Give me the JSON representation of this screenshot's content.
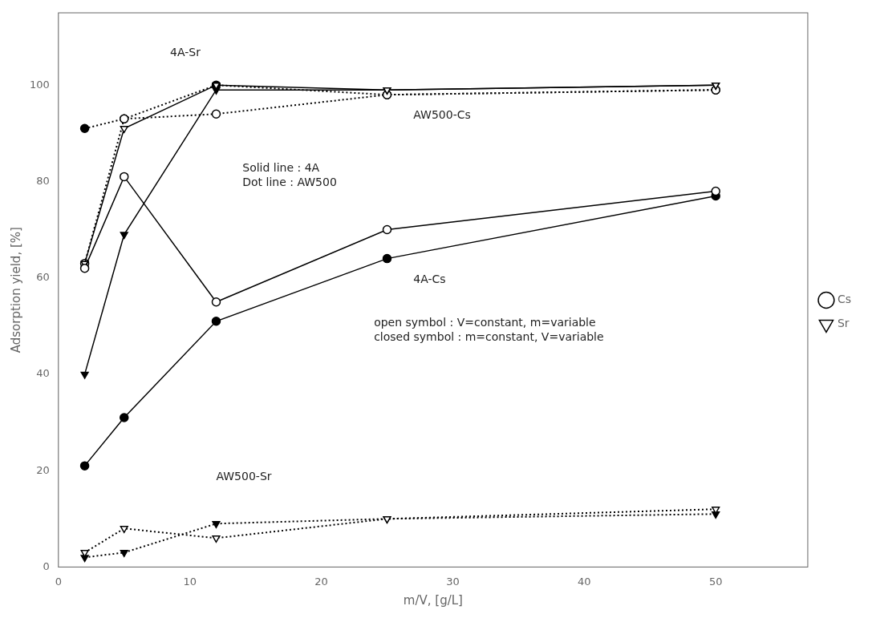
{
  "chart_data": {
    "type": "line",
    "x_label": "m/V, [g/L]",
    "y_label": "Adsorption yield, [%]",
    "xlim": [
      0,
      57
    ],
    "ylim": [
      0,
      115
    ],
    "xticks": [
      0,
      10,
      20,
      30,
      40,
      50
    ],
    "yticks": [
      0,
      20,
      40,
      60,
      80,
      100
    ],
    "grid": false,
    "legend": "right",
    "x": [
      2,
      5,
      12,
      25,
      50
    ],
    "series": [
      {
        "name": "Cs",
        "values": [
          62,
          81,
          55,
          70,
          78
        ],
        "color": "black",
        "marker": "open_circle",
        "line_style": "solid"
      },
      {
        "values": [
          21,
          31,
          51,
          64,
          77
        ],
        "color": "black",
        "marker": "circle",
        "line_style": "solid"
      },
      {
        "name": "Sr",
        "values": [
          63,
          91,
          100,
          99,
          100
        ],
        "color": "black",
        "marker": "open_triangle_down",
        "line_style": "solid"
      },
      {
        "values": [
          40,
          69,
          99,
          99,
          100
        ],
        "color": "black",
        "marker": "triangle_down",
        "line_style": "solid"
      },
      {
        "values": [
          63,
          93,
          94,
          98,
          99
        ],
        "color": "black",
        "marker": "open_circle",
        "line_style": "dotted"
      },
      {
        "values": [
          91,
          93,
          100,
          98,
          99
        ],
        "color": "black",
        "marker": "circle",
        "line_style": "dotted"
      },
      {
        "values": [
          3,
          8,
          6,
          10,
          12
        ],
        "color": "black",
        "marker": "open_triangle_down",
        "line_style": "dotted"
      },
      {
        "values": [
          2,
          3,
          9,
          10,
          11
        ],
        "color": "black",
        "marker": "triangle_down",
        "line_style": "dotted"
      }
    ],
    "annotations": [
      {
        "x": 8.5,
        "y": 106,
        "text": "4A-Sr"
      },
      {
        "x": 27,
        "y": 93,
        "text": "AW500-Cs"
      },
      {
        "x": 27,
        "y": 59,
        "text": "4A-Cs"
      },
      {
        "x": 12,
        "y": 18,
        "text": "AW500-Sr"
      },
      {
        "x": 14,
        "y": 79,
        "text": "Solid line : 4A\nDot line : AW500"
      },
      {
        "x": 24,
        "y": 47,
        "text": "open symbol : V=constant, m=variable\nclosed symbol : m=constant, V=variable"
      }
    ]
  }
}
